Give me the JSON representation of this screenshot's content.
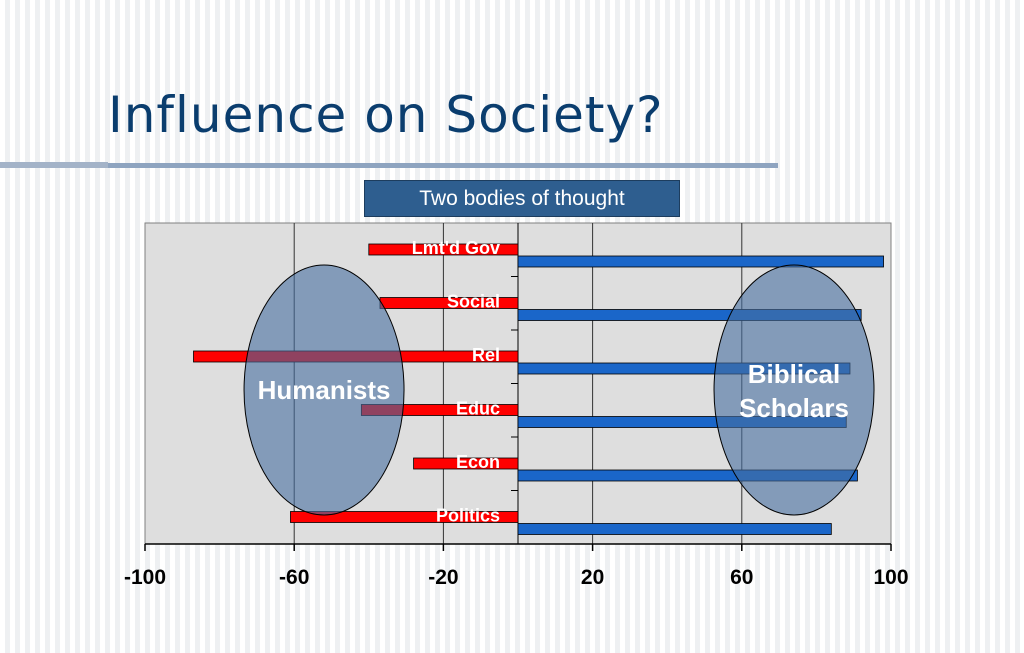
{
  "slide": {
    "title": "Influence on Society?",
    "subtitle": "Two bodies of thought"
  },
  "chart_data": {
    "type": "bar",
    "orientation": "horizontal",
    "categories": [
      "Lmt'd Gov",
      "Social",
      "Rel",
      "Educ",
      "Econ",
      "Politics"
    ],
    "series": [
      {
        "name": "Humanists",
        "color": "#ff0000",
        "values": [
          -40,
          -37,
          -87,
          -42,
          -28,
          -61
        ]
      },
      {
        "name": "Biblical Scholars",
        "color": "#1a66c9",
        "values": [
          98,
          92,
          89,
          88,
          91,
          84
        ]
      }
    ],
    "xlim": [
      -100,
      100
    ],
    "xticks": [
      "-100",
      "-60",
      "-20",
      "20",
      "60",
      "100"
    ],
    "xtick_values": [
      -100,
      -60,
      -20,
      20,
      60,
      100
    ],
    "plot_background": "#dedede",
    "annotations": [
      {
        "label": "Humanists",
        "center_x": -52
      },
      {
        "label_line1": "Biblical",
        "label_line2": "Scholars",
        "center_x": 74
      }
    ]
  }
}
